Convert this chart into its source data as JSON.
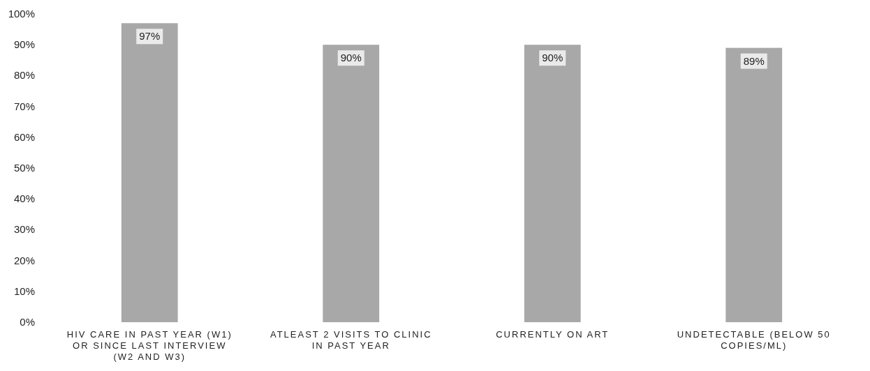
{
  "chart_data": {
    "type": "bar",
    "categories": [
      "HIV CARE IN PAST YEAR (W1) OR SINCE LAST INTERVIEW (W2 AND W3)",
      "ATLEAST 2 VISITS TO CLINIC IN PAST YEAR",
      "CURRENTLY ON ART",
      "UNDETECTABLE (BELOW 50 COPIES/ML)"
    ],
    "values": [
      97,
      90,
      90,
      89
    ],
    "color": "#a9a8a8",
    "value_labels": [
      "97%",
      "90%",
      "90%",
      "89%"
    ],
    "ylim": [
      0,
      100
    ],
    "yticks": [
      {
        "value": 0,
        "label": "0%"
      },
      {
        "value": 10,
        "label": "10%"
      },
      {
        "value": 20,
        "label": "20%"
      },
      {
        "value": 30,
        "label": "30%"
      },
      {
        "value": 40,
        "label": "40%"
      },
      {
        "value": 50,
        "label": "50%"
      },
      {
        "value": 60,
        "label": "60%"
      },
      {
        "value": 70,
        "label": "70%"
      },
      {
        "value": 80,
        "label": "80%"
      },
      {
        "value": 90,
        "label": "90%"
      },
      {
        "value": 100,
        "label": "100%"
      }
    ],
    "grid": false
  }
}
